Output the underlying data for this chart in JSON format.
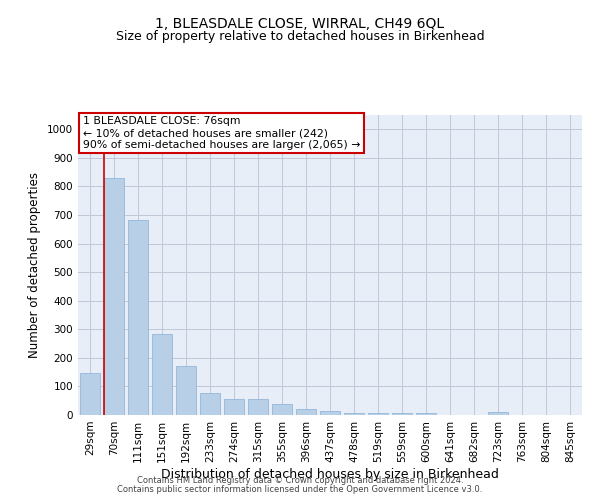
{
  "title": "1, BLEASDALE CLOSE, WIRRAL, CH49 6QL",
  "subtitle": "Size of property relative to detached houses in Birkenhead",
  "xlabel": "Distribution of detached houses by size in Birkenhead",
  "ylabel": "Number of detached properties",
  "footnote1": "Contains HM Land Registry data © Crown copyright and database right 2024.",
  "footnote2": "Contains public sector information licensed under the Open Government Licence v3.0.",
  "categories": [
    "29sqm",
    "70sqm",
    "111sqm",
    "151sqm",
    "192sqm",
    "233sqm",
    "274sqm",
    "315sqm",
    "355sqm",
    "396sqm",
    "437sqm",
    "478sqm",
    "519sqm",
    "559sqm",
    "600sqm",
    "641sqm",
    "682sqm",
    "723sqm",
    "763sqm",
    "804sqm",
    "845sqm"
  ],
  "values": [
    148,
    830,
    683,
    283,
    173,
    78,
    55,
    55,
    40,
    22,
    15,
    8,
    8,
    7,
    6,
    0,
    0,
    10,
    0,
    0,
    0
  ],
  "bar_color": "#b8cfe8",
  "bar_edge_color": "#8aafd4",
  "vline_x": 0.57,
  "vline_color": "#cc0000",
  "annotation_text": "1 BLEASDALE CLOSE: 76sqm\n← 10% of detached houses are smaller (242)\n90% of semi-detached houses are larger (2,065) →",
  "annotation_box_color": "#cc0000",
  "ylim": [
    0,
    1050
  ],
  "yticks": [
    0,
    100,
    200,
    300,
    400,
    500,
    600,
    700,
    800,
    900,
    1000
  ],
  "grid_color": "#c0c8d8",
  "background_color": "#e8eef8",
  "title_fontsize": 10,
  "subtitle_fontsize": 9,
  "ylabel_fontsize": 8.5,
  "xlabel_fontsize": 9,
  "tick_fontsize": 7.5,
  "annotation_fontsize": 7.8,
  "footnote_fontsize": 6.0
}
